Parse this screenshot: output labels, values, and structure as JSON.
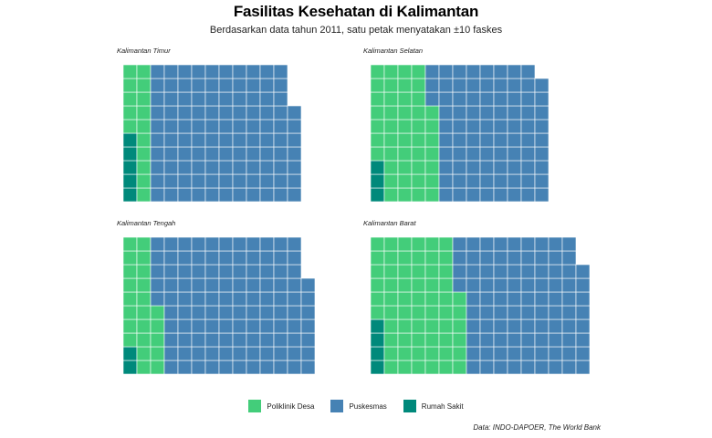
{
  "title": "Fasilitas Kesehatan di Kalimantan",
  "subtitle": "Berdasarkan data tahun 2011, satu petak menyatakan ±10 faskes",
  "caption": "Data: INDO-DAPOER, The World Bank",
  "colors": {
    "Poliklinik Desa": "#43cd7a",
    "Puskesmas": "#4682b4",
    "Rumah Sakit": "#00897b"
  },
  "legend": [
    {
      "label": "Poliklinik Desa",
      "color": "#43cd7a"
    },
    {
      "label": "Puskesmas",
      "color": "#4682b4"
    },
    {
      "label": "Rumah Sakit",
      "color": "#00897b"
    }
  ],
  "chart_data": {
    "type": "waffle",
    "unit": "1 petak = ±10 faskes",
    "rows_per_column": 10,
    "categories": [
      "Rumah Sakit",
      "Poliklinik Desa",
      "Puskesmas"
    ],
    "panels": [
      {
        "name": "Kalimantan Timur",
        "values": {
          "Rumah Sakit": 5,
          "Poliklinik Desa": 15,
          "Puskesmas": 107
        }
      },
      {
        "name": "Kalimantan Selatan",
        "values": {
          "Rumah Sakit": 3,
          "Poliklinik Desa": 44,
          "Puskesmas": 82
        }
      },
      {
        "name": "Kalimantan Tengah",
        "values": {
          "Rumah Sakit": 2,
          "Poliklinik Desa": 23,
          "Puskesmas": 112
        }
      },
      {
        "name": "Kalimantan Barat",
        "values": {
          "Rumah Sakit": 4,
          "Poliklinik Desa": 62,
          "Puskesmas": 92
        }
      }
    ]
  }
}
